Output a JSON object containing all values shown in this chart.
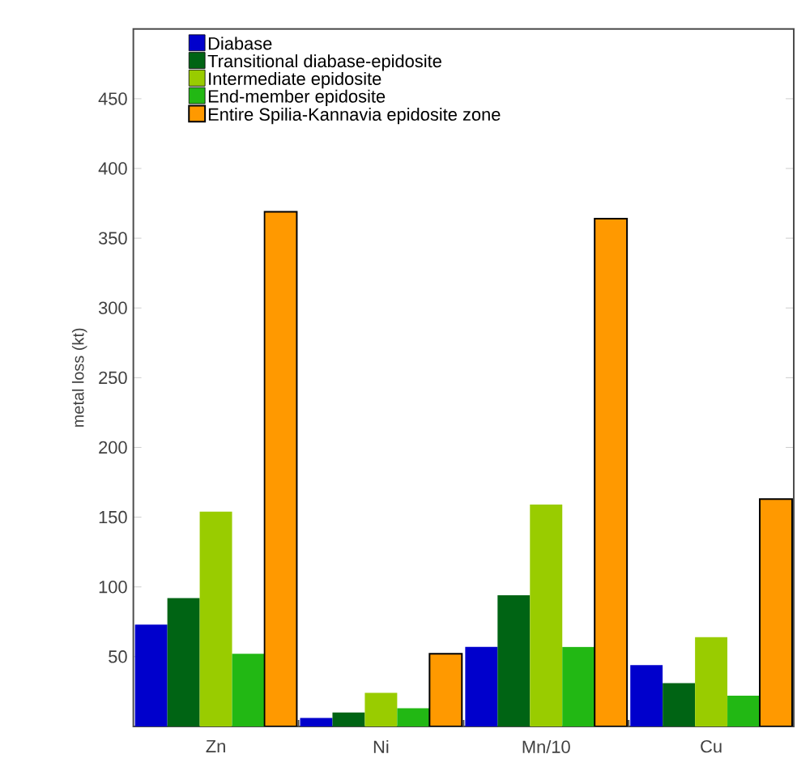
{
  "chart_data": {
    "type": "bar",
    "ylabel": "metal loss (kt)",
    "categories": [
      "Zn",
      "Ni",
      "Mn/10",
      "Cu"
    ],
    "series": [
      {
        "name": "Diabase",
        "color": "#0000cc",
        "values": [
          73,
          6,
          57,
          44
        ]
      },
      {
        "name": "Transitional diabase-epidosite",
        "color": "#006414",
        "values": [
          92,
          10,
          94,
          31
        ]
      },
      {
        "name": "Intermediate epidosite",
        "color": "#99cc00",
        "values": [
          154,
          24,
          159,
          64
        ]
      },
      {
        "name": "End-member epidosite",
        "color": "#22b814",
        "values": [
          52,
          13,
          57,
          22
        ]
      },
      {
        "name": "Entire Spilia-Kannavia epidosite zone",
        "color": "#ff9900",
        "values": [
          369,
          52,
          364,
          163
        ]
      }
    ],
    "ylim": [
      0,
      500
    ],
    "yticks": [
      50,
      100,
      150,
      200,
      250,
      300,
      350,
      400,
      450
    ],
    "legend": "top left",
    "grid": false
  }
}
